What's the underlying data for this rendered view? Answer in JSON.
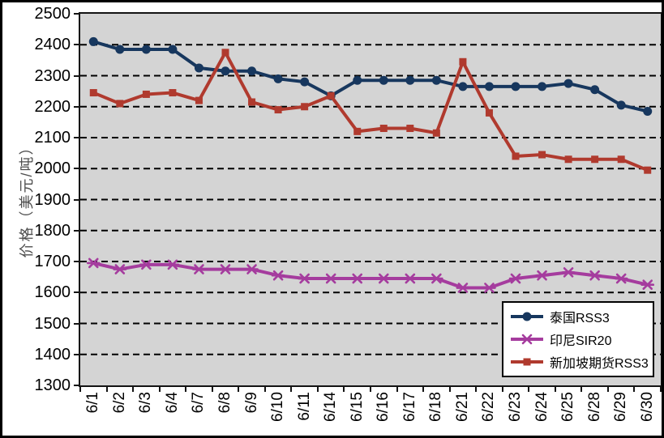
{
  "chart_data": {
    "type": "line",
    "title": "",
    "xlabel": "",
    "ylabel": "价格（美元/吨）",
    "ylim": [
      1300,
      2500
    ],
    "y_tick_step": 100,
    "grid": "horizontal-dashed",
    "plot_bg_color": "#d4d4d4",
    "gridline_color": "#000000",
    "legend_position": "inside-bottom-right",
    "categories": [
      "6/1",
      "6/2",
      "6/3",
      "6/4",
      "6/7",
      "6/8",
      "6/9",
      "6/10",
      "6/11",
      "6/14",
      "6/15",
      "6/16",
      "6/17",
      "6/18",
      "6/21",
      "6/22",
      "6/23",
      "6/24",
      "6/25",
      "6/28",
      "6/29",
      "6/30"
    ],
    "series": [
      {
        "name": "泰国RSS3",
        "color": "#17375E",
        "marker": "circle",
        "values": [
          2410,
          2385,
          2385,
          2385,
          2325,
          2315,
          2315,
          2290,
          2280,
          2235,
          2285,
          2285,
          2285,
          2285,
          2265,
          2265,
          2265,
          2265,
          2275,
          2255,
          2205,
          2185
        ]
      },
      {
        "name": "印尼SIR20",
        "color": "#A53C9E",
        "marker": "asterisk",
        "values": [
          1695,
          1675,
          1690,
          1690,
          1675,
          1675,
          1675,
          1655,
          1645,
          1645,
          1645,
          1645,
          1645,
          1645,
          1615,
          1615,
          1645,
          1655,
          1665,
          1655,
          1645,
          1625
        ]
      },
      {
        "name": "新加坡期货RSS3",
        "color": "#B03A2E",
        "marker": "square",
        "values": [
          2245,
          2210,
          2240,
          2245,
          2220,
          2375,
          2215,
          2190,
          2200,
          2235,
          2120,
          2130,
          2130,
          2115,
          2345,
          2180,
          2040,
          2045,
          2030,
          2030,
          2030,
          1995
        ]
      }
    ]
  }
}
